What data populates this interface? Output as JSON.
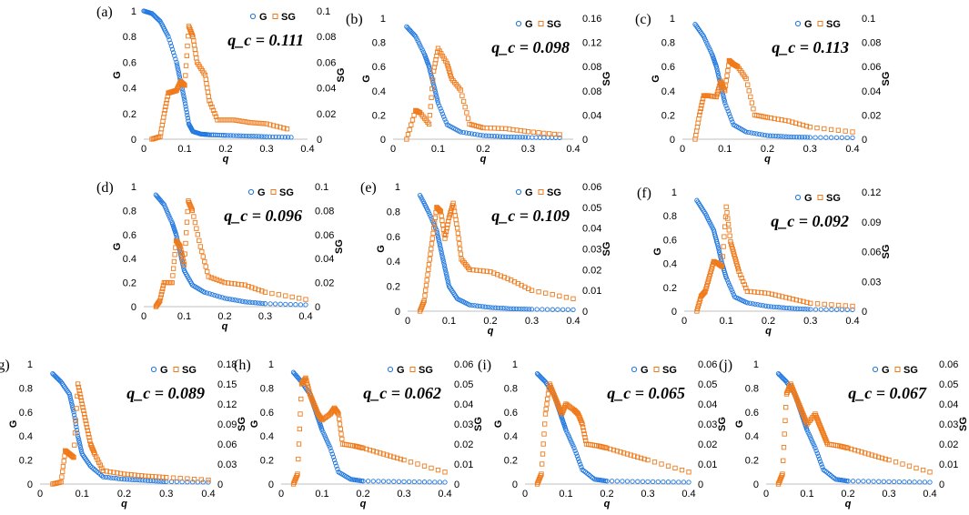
{
  "figure": {
    "colors": {
      "G": "#1f77e0",
      "SG": "#f07a1a"
    },
    "legend": {
      "G": "G",
      "SG": "SG"
    }
  },
  "chart_data": [
    {
      "type": "scatter",
      "panel": "(a)",
      "qc_text": "q_c = 0.111",
      "qc": 0.111,
      "xlabel": "q",
      "ylabel": "G",
      "y2label": "SG",
      "xlim": [
        0,
        0.4
      ],
      "xticks": [
        "0",
        "0.1",
        "0.2",
        "0.3",
        "0.4"
      ],
      "ylim": [
        0,
        1
      ],
      "yticks": [
        "0",
        "0.2",
        "0.4",
        "0.6",
        "0.8",
        "1"
      ],
      "y2lim": [
        0,
        0.1
      ],
      "y2ticks": [
        "0",
        "0.02",
        "0.04",
        "0.06",
        "0.08",
        "0.1"
      ],
      "series": [
        {
          "name": "G",
          "x": [
            0.0,
            0.02,
            0.04,
            0.06,
            0.08,
            0.09,
            0.1,
            0.11,
            0.12,
            0.14,
            0.16,
            0.2,
            0.25,
            0.3,
            0.36
          ],
          "y": [
            1.0,
            0.98,
            0.92,
            0.8,
            0.6,
            0.45,
            0.3,
            0.12,
            0.06,
            0.04,
            0.035,
            0.03,
            0.025,
            0.02,
            0.015
          ]
        },
        {
          "name": "SG",
          "x": [
            0.02,
            0.04,
            0.05,
            0.06,
            0.07,
            0.08,
            0.09,
            0.1,
            0.11,
            0.12,
            0.13,
            0.15,
            0.16,
            0.18,
            0.22,
            0.26,
            0.3,
            0.35
          ],
          "y": [
            0.0,
            0.002,
            0.02,
            0.036,
            0.037,
            0.038,
            0.045,
            0.042,
            0.088,
            0.08,
            0.06,
            0.05,
            0.03,
            0.015,
            0.015,
            0.013,
            0.012,
            0.008
          ]
        }
      ]
    },
    {
      "type": "scatter",
      "panel": "(b)",
      "qc_text": "q_c = 0.098",
      "qc": 0.098,
      "xlabel": "q",
      "ylabel": "G",
      "y2label": "SG",
      "xlim": [
        0,
        0.4
      ],
      "xticks": [
        "0",
        "0.1",
        "0.2",
        "0.3",
        "0.4"
      ],
      "ylim": [
        0,
        1
      ],
      "yticks": [
        "0",
        "0.2",
        "0.4",
        "0.6",
        "0.8",
        "1"
      ],
      "y2lim": [
        0,
        0.16
      ],
      "y2ticks": [
        "0",
        "0.04",
        "0.08",
        "0.08",
        "0.12",
        "0.16"
      ],
      "series": [
        {
          "name": "G",
          "x": [
            0.03,
            0.05,
            0.07,
            0.08,
            0.09,
            0.1,
            0.12,
            0.15,
            0.2,
            0.25,
            0.3,
            0.37
          ],
          "y": [
            0.93,
            0.85,
            0.7,
            0.6,
            0.45,
            0.3,
            0.12,
            0.06,
            0.03,
            0.02,
            0.015,
            0.012
          ]
        },
        {
          "name": "SG",
          "x": [
            0.03,
            0.05,
            0.06,
            0.08,
            0.09,
            0.1,
            0.12,
            0.13,
            0.15,
            0.17,
            0.2,
            0.25,
            0.3,
            0.37
          ],
          "y": [
            0.0,
            0.038,
            0.035,
            0.02,
            0.09,
            0.12,
            0.1,
            0.08,
            0.065,
            0.02,
            0.015,
            0.014,
            0.01,
            0.006
          ]
        }
      ]
    },
    {
      "type": "scatter",
      "panel": "(c)",
      "qc_text": "q_c = 0.113",
      "qc": 0.113,
      "xlabel": "q",
      "ylabel": "G",
      "y2label": "SG",
      "xlim": [
        0,
        0.4
      ],
      "xticks": [
        "0",
        "0.1",
        "0.2",
        "0.3",
        "0.4"
      ],
      "ylim": [
        0,
        1
      ],
      "yticks": [
        "0",
        "0.2",
        "0.4",
        "0.6",
        "0.8",
        "1"
      ],
      "y2lim": [
        0,
        0.1
      ],
      "y2ticks": [
        "0",
        "0.02",
        "0.04",
        "0.06",
        "0.08",
        "0.1"
      ],
      "series": [
        {
          "name": "G",
          "x": [
            0.03,
            0.05,
            0.07,
            0.08,
            0.09,
            0.1,
            0.12,
            0.15,
            0.2,
            0.25,
            0.3,
            0.4
          ],
          "y": [
            0.95,
            0.85,
            0.7,
            0.6,
            0.45,
            0.3,
            0.12,
            0.06,
            0.03,
            0.02,
            0.015,
            0.012
          ]
        },
        {
          "name": "SG",
          "x": [
            0.03,
            0.04,
            0.05,
            0.06,
            0.08,
            0.09,
            0.1,
            0.11,
            0.12,
            0.13,
            0.15,
            0.17,
            0.2,
            0.25,
            0.3,
            0.4
          ],
          "y": [
            0.0,
            0.02,
            0.036,
            0.036,
            0.035,
            0.048,
            0.04,
            0.065,
            0.062,
            0.06,
            0.05,
            0.02,
            0.018,
            0.015,
            0.01,
            0.006
          ]
        }
      ]
    },
    {
      "type": "scatter",
      "panel": "(d)",
      "qc_text": "q_c = 0.096",
      "qc": 0.096,
      "xlabel": "q",
      "ylabel": "G",
      "y2label": "SG",
      "xlim": [
        0,
        0.4
      ],
      "xticks": [
        "0",
        "0.1",
        "0.2",
        "0.3",
        "0.4"
      ],
      "ylim": [
        0,
        1
      ],
      "yticks": [
        "0",
        "0.2",
        "0.4",
        "0.6",
        "0.8",
        "1"
      ],
      "y2lim": [
        0,
        0.1
      ],
      "y2ticks": [
        "0",
        "0.02",
        "0.04",
        "0.06",
        "0.08",
        "0.1"
      ],
      "series": [
        {
          "name": "G",
          "x": [
            0.03,
            0.05,
            0.07,
            0.08,
            0.09,
            0.1,
            0.12,
            0.15,
            0.2,
            0.25,
            0.3,
            0.4
          ],
          "y": [
            0.93,
            0.85,
            0.7,
            0.6,
            0.45,
            0.3,
            0.18,
            0.12,
            0.07,
            0.04,
            0.025,
            0.015
          ]
        },
        {
          "name": "SG",
          "x": [
            0.03,
            0.04,
            0.05,
            0.07,
            0.08,
            0.09,
            0.1,
            0.11,
            0.12,
            0.14,
            0.16,
            0.2,
            0.25,
            0.3,
            0.4
          ],
          "y": [
            0.0,
            0.005,
            0.02,
            0.02,
            0.055,
            0.05,
            0.035,
            0.088,
            0.08,
            0.05,
            0.025,
            0.02,
            0.018,
            0.012,
            0.006
          ]
        }
      ]
    },
    {
      "type": "scatter",
      "panel": "(e)",
      "qc_text": "q_c = 0.109",
      "qc": 0.109,
      "xlabel": "q",
      "ylabel": "G",
      "y2label": "SG",
      "xlim": [
        0,
        0.4
      ],
      "xticks": [
        "0",
        "0.1",
        "0.2",
        "0.3",
        "0.4"
      ],
      "ylim": [
        0,
        1
      ],
      "yticks": [
        "0",
        "0.2",
        "0.4",
        "0.6",
        "0.8",
        "1"
      ],
      "y2lim": [
        0,
        0.06
      ],
      "y2ticks": [
        "0",
        "0.01",
        "0.02",
        "0.03",
        "0.04",
        "0.05",
        "0.06"
      ],
      "series": [
        {
          "name": "G",
          "x": [
            0.03,
            0.05,
            0.07,
            0.08,
            0.09,
            0.1,
            0.12,
            0.15,
            0.2,
            0.25,
            0.3,
            0.4
          ],
          "y": [
            0.93,
            0.8,
            0.65,
            0.5,
            0.35,
            0.2,
            0.1,
            0.05,
            0.03,
            0.02,
            0.015,
            0.012
          ]
        },
        {
          "name": "SG",
          "x": [
            0.03,
            0.04,
            0.05,
            0.06,
            0.07,
            0.08,
            0.09,
            0.1,
            0.11,
            0.12,
            0.13,
            0.15,
            0.2,
            0.25,
            0.3,
            0.4
          ],
          "y": [
            0.0,
            0.005,
            0.02,
            0.035,
            0.05,
            0.048,
            0.035,
            0.045,
            0.052,
            0.04,
            0.025,
            0.02,
            0.019,
            0.015,
            0.01,
            0.006
          ]
        }
      ]
    },
    {
      "type": "scatter",
      "panel": "(f)",
      "qc_text": "q_c = 0.092",
      "qc": 0.092,
      "xlabel": "q",
      "ylabel": "G",
      "y2label": "SG",
      "xlim": [
        0,
        0.4
      ],
      "xticks": [
        "0",
        "0.1",
        "0.2",
        "0.3",
        "0.4"
      ],
      "ylim": [
        0,
        1
      ],
      "yticks": [
        "0",
        "0.2",
        "0.4",
        "0.6",
        "0.8",
        "1"
      ],
      "y2lim": [
        0,
        0.12
      ],
      "y2ticks": [
        "0",
        "0.03",
        "0.06",
        "0.09",
        "0.12"
      ],
      "series": [
        {
          "name": "G",
          "x": [
            0.03,
            0.05,
            0.07,
            0.08,
            0.09,
            0.1,
            0.12,
            0.15,
            0.2,
            0.25,
            0.3,
            0.4
          ],
          "y": [
            0.93,
            0.82,
            0.68,
            0.55,
            0.4,
            0.28,
            0.12,
            0.07,
            0.04,
            0.025,
            0.015,
            0.012
          ]
        },
        {
          "name": "SG",
          "x": [
            0.03,
            0.04,
            0.05,
            0.06,
            0.07,
            0.08,
            0.09,
            0.1,
            0.11,
            0.12,
            0.13,
            0.15,
            0.2,
            0.25,
            0.3,
            0.4
          ],
          "y": [
            0.0,
            0.015,
            0.02,
            0.035,
            0.05,
            0.048,
            0.045,
            0.105,
            0.07,
            0.055,
            0.04,
            0.02,
            0.018,
            0.013,
            0.008,
            0.005
          ]
        }
      ]
    },
    {
      "type": "scatter",
      "panel": "(g)",
      "qc_text": "q_c = 0.089",
      "qc": 0.089,
      "xlabel": "q",
      "ylabel": "G",
      "y2label": "SG",
      "xlim": [
        0,
        0.4
      ],
      "xticks": [
        "0",
        "0.1",
        "0.2",
        "0.3",
        "0.4"
      ],
      "ylim": [
        0,
        1
      ],
      "yticks": [
        "0",
        "0.2",
        "0.4",
        "0.6",
        "0.8",
        "1"
      ],
      "y2lim": [
        0,
        0.18
      ],
      "y2ticks": [
        "0",
        "0.03",
        "0.06",
        "0.09",
        "0.12",
        "0.15",
        "0.18"
      ],
      "series": [
        {
          "name": "G",
          "x": [
            0.03,
            0.05,
            0.07,
            0.08,
            0.09,
            0.1,
            0.12,
            0.15,
            0.2,
            0.25,
            0.3,
            0.4
          ],
          "y": [
            0.92,
            0.85,
            0.75,
            0.6,
            0.4,
            0.25,
            0.15,
            0.06,
            0.04,
            0.03,
            0.02,
            0.015
          ]
        },
        {
          "name": "SG",
          "x": [
            0.03,
            0.05,
            0.06,
            0.07,
            0.08,
            0.09,
            0.1,
            0.11,
            0.12,
            0.13,
            0.15,
            0.2,
            0.25,
            0.3,
            0.4
          ],
          "y": [
            0.0,
            0.003,
            0.05,
            0.045,
            0.04,
            0.15,
            0.12,
            0.09,
            0.06,
            0.045,
            0.02,
            0.015,
            0.012,
            0.01,
            0.006
          ]
        }
      ]
    },
    {
      "type": "scatter",
      "panel": "(h)",
      "qc_text": "q_c = 0.062",
      "qc": 0.062,
      "xlabel": "q",
      "ylabel": "G",
      "y2label": "SG",
      "xlim": [
        0,
        0.4
      ],
      "xticks": [
        "0",
        "0.1",
        "0.2",
        "0.3",
        "0.4"
      ],
      "ylim": [
        0,
        1
      ],
      "yticks": [
        "0",
        "0.2",
        "0.4",
        "0.6",
        "0.8",
        "1"
      ],
      "y2lim": [
        0,
        0.06
      ],
      "y2ticks": [
        "0",
        "0.01",
        "0.02",
        "0.03",
        "0.04",
        "0.05",
        "0.06"
      ],
      "series": [
        {
          "name": "G",
          "x": [
            0.03,
            0.05,
            0.07,
            0.08,
            0.09,
            0.1,
            0.12,
            0.14,
            0.17,
            0.2,
            0.3,
            0.4
          ],
          "y": [
            0.93,
            0.85,
            0.75,
            0.65,
            0.55,
            0.45,
            0.3,
            0.1,
            0.04,
            0.025,
            0.02,
            0.015
          ]
        },
        {
          "name": "SG",
          "x": [
            0.03,
            0.04,
            0.05,
            0.06,
            0.07,
            0.08,
            0.09,
            0.1,
            0.12,
            0.13,
            0.14,
            0.15,
            0.18,
            0.2,
            0.25,
            0.3,
            0.4
          ],
          "y": [
            0.0,
            0.005,
            0.05,
            0.053,
            0.045,
            0.04,
            0.035,
            0.032,
            0.035,
            0.038,
            0.035,
            0.02,
            0.019,
            0.018,
            0.015,
            0.012,
            0.006
          ]
        }
      ]
    },
    {
      "type": "scatter",
      "panel": "(i)",
      "qc_text": "q_c = 0.065",
      "qc": 0.065,
      "xlabel": "q",
      "ylabel": "G",
      "y2label": "SG",
      "xlim": [
        0,
        0.4
      ],
      "xticks": [
        "0",
        "0.1",
        "0.2",
        "0.3",
        "0.4"
      ],
      "ylim": [
        0,
        1
      ],
      "yticks": [
        "0",
        "0.2",
        "0.4",
        "0.6",
        "0.8",
        "1"
      ],
      "y2lim": [
        0,
        0.06
      ],
      "y2ticks": [
        "0",
        "0.01",
        "0.02",
        "0.03",
        "0.04",
        "0.05",
        "0.06"
      ],
      "series": [
        {
          "name": "G",
          "x": [
            0.03,
            0.05,
            0.07,
            0.08,
            0.09,
            0.1,
            0.12,
            0.14,
            0.17,
            0.2,
            0.3,
            0.4
          ],
          "y": [
            0.92,
            0.85,
            0.75,
            0.65,
            0.55,
            0.45,
            0.3,
            0.12,
            0.04,
            0.025,
            0.02,
            0.015
          ]
        },
        {
          "name": "SG",
          "x": [
            0.03,
            0.04,
            0.05,
            0.06,
            0.07,
            0.08,
            0.09,
            0.1,
            0.12,
            0.13,
            0.14,
            0.15,
            0.18,
            0.2,
            0.25,
            0.3,
            0.4
          ],
          "y": [
            0.0,
            0.005,
            0.035,
            0.05,
            0.045,
            0.04,
            0.035,
            0.04,
            0.037,
            0.035,
            0.03,
            0.02,
            0.019,
            0.018,
            0.015,
            0.012,
            0.006
          ]
        }
      ]
    },
    {
      "type": "scatter",
      "panel": "(j)",
      "qc_text": "q_c = 0.067",
      "qc": 0.067,
      "xlabel": "q",
      "ylabel": "G",
      "y2label": "SG",
      "xlim": [
        0,
        0.4
      ],
      "xticks": [
        "0",
        "0.1",
        "0.2",
        "0.3",
        "0.4"
      ],
      "ylim": [
        0,
        1
      ],
      "yticks": [
        "0",
        "0.2",
        "0.4",
        "0.6",
        "0.8",
        "1"
      ],
      "y2lim": [
        0,
        0.06
      ],
      "y2ticks": [
        "0",
        "0.01",
        "0.02",
        "0.03",
        "0.04",
        "0.05",
        "0.06"
      ],
      "series": [
        {
          "name": "G",
          "x": [
            0.03,
            0.05,
            0.07,
            0.08,
            0.09,
            0.1,
            0.12,
            0.14,
            0.17,
            0.2,
            0.3,
            0.4
          ],
          "y": [
            0.92,
            0.85,
            0.75,
            0.65,
            0.55,
            0.45,
            0.3,
            0.12,
            0.04,
            0.025,
            0.02,
            0.015
          ]
        },
        {
          "name": "SG",
          "x": [
            0.03,
            0.04,
            0.05,
            0.06,
            0.07,
            0.08,
            0.09,
            0.1,
            0.12,
            0.13,
            0.14,
            0.15,
            0.18,
            0.2,
            0.25,
            0.3,
            0.4
          ],
          "y": [
            0.0,
            0.005,
            0.045,
            0.05,
            0.045,
            0.04,
            0.035,
            0.03,
            0.035,
            0.03,
            0.025,
            0.02,
            0.019,
            0.018,
            0.015,
            0.012,
            0.006
          ]
        }
      ]
    }
  ]
}
